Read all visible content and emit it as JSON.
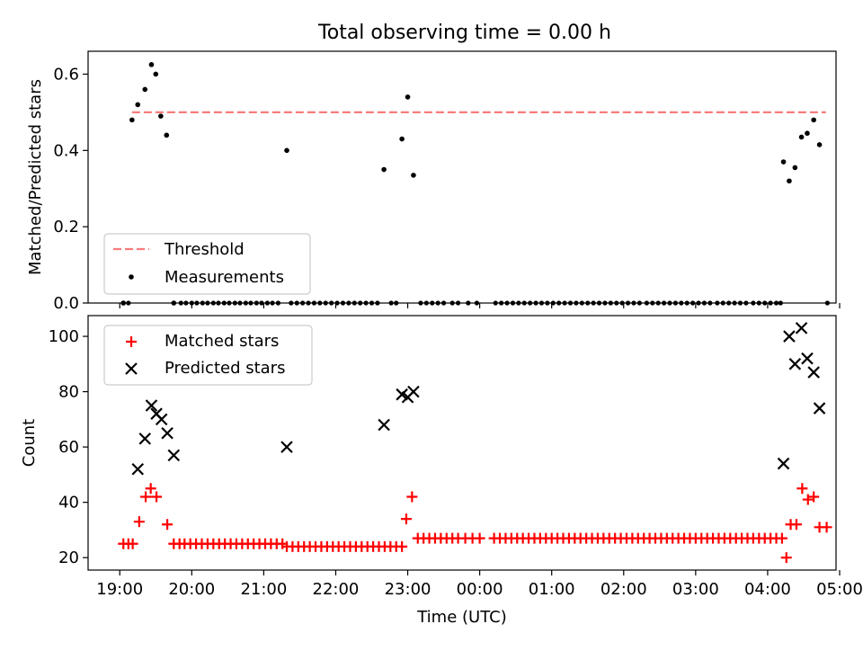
{
  "figure": {
    "title": "Total observing time = 0.00 h"
  },
  "chart_data": [
    {
      "panel": "top",
      "type": "scatter",
      "ylabel": "Matched/Predicted stars",
      "ylim": [
        0,
        0.66
      ],
      "yticks": [
        0.0,
        0.2,
        0.4,
        0.6
      ],
      "ytick_labels": [
        "0.0",
        "0.2",
        "0.4",
        "0.6"
      ],
      "xlim": [
        -0.44,
        9.95
      ],
      "legend_loc": "lower-left",
      "grid": false,
      "series": [
        {
          "name": "Threshold",
          "kind": "line",
          "style": "dashed",
          "color": "#f87c7c",
          "x": [
            0.17,
            9.81
          ],
          "y": [
            0.5,
            0.5
          ]
        },
        {
          "name": "Measurements",
          "kind": "points",
          "color": "#000000",
          "x": [
            0.05,
            0.17,
            0.25,
            0.35,
            0.44,
            0.5,
            0.57,
            0.65,
            0.75,
            2.32,
            3.67,
            3.92,
            4.0,
            4.08,
            9.22,
            9.3,
            9.38,
            9.47,
            9.55,
            9.64,
            9.72
          ],
          "y": [
            0.0,
            0.48,
            0.52,
            0.56,
            0.625,
            0.6,
            0.49,
            0.44,
            0.0,
            0.4,
            0.35,
            0.43,
            0.54,
            0.335,
            0.37,
            0.32,
            0.355,
            0.435,
            0.445,
            0.48,
            0.415
          ]
        },
        {
          "name": "",
          "kind": "zero-points",
          "color": "#000000",
          "x": [
            0.05,
            0.12,
            0.85,
            0.92,
            1.0,
            1.07,
            1.15,
            1.22,
            1.3,
            1.37,
            1.45,
            1.52,
            1.6,
            1.67,
            1.75,
            1.82,
            1.9,
            1.97,
            2.05,
            2.12,
            2.2,
            2.38,
            2.46,
            2.54,
            2.62,
            2.7,
            2.78,
            2.86,
            2.94,
            3.02,
            3.1,
            3.18,
            3.26,
            3.34,
            3.42,
            3.5,
            3.58,
            3.77,
            3.84,
            4.18,
            4.26,
            4.34,
            4.42,
            4.5,
            4.62,
            4.7,
            4.84,
            4.96,
            5.22,
            5.3,
            5.38,
            5.46,
            5.54,
            5.62,
            5.7,
            5.78,
            5.86,
            5.94,
            6.02,
            6.1,
            6.18,
            6.26,
            6.34,
            6.42,
            6.5,
            6.58,
            6.66,
            6.74,
            6.82,
            6.9,
            6.98,
            7.06,
            7.14,
            7.22,
            7.32,
            7.4,
            7.48,
            7.56,
            7.64,
            7.72,
            7.8,
            7.88,
            7.96,
            8.04,
            8.12,
            8.2,
            8.3,
            8.38,
            8.46,
            8.54,
            8.62,
            8.7,
            8.8,
            8.88,
            8.96,
            9.04,
            9.12,
            9.18,
            9.83
          ],
          "y": 0.0
        }
      ]
    },
    {
      "panel": "bottom",
      "type": "scatter",
      "xlabel": "Time (UTC)",
      "ylabel": "Count",
      "ylim": [
        15.5,
        107.5
      ],
      "yticks": [
        20,
        40,
        60,
        80,
        100
      ],
      "ytick_labels": [
        "20",
        "40",
        "60",
        "80",
        "100"
      ],
      "xlim": [
        -0.44,
        9.95
      ],
      "xticks": [
        0,
        1,
        2,
        3,
        4,
        5,
        6,
        7,
        8,
        9,
        10
      ],
      "xtick_labels": [
        "19:00",
        "20:00",
        "21:00",
        "22:00",
        "23:00",
        "00:00",
        "01:00",
        "02:00",
        "03:00",
        "04:00",
        "05:00"
      ],
      "legend_loc": "upper-left",
      "grid": false,
      "series": [
        {
          "name": "Matched stars",
          "marker": "+",
          "color": "#ff0000",
          "x": [
            0.05,
            0.12,
            0.18,
            0.27,
            0.36,
            0.43,
            0.51,
            0.66,
            0.75,
            0.83,
            0.9,
            0.98,
            1.06,
            1.14,
            1.22,
            1.3,
            1.38,
            1.46,
            1.54,
            1.62,
            1.7,
            1.78,
            1.86,
            1.94,
            2.02,
            2.1,
            2.18,
            2.26,
            2.32,
            2.4,
            2.48,
            2.56,
            2.64,
            2.72,
            2.8,
            2.88,
            2.96,
            3.04,
            3.12,
            3.2,
            3.28,
            3.36,
            3.44,
            3.52,
            3.6,
            3.68,
            3.76,
            3.84,
            3.92,
            3.98,
            4.06,
            4.14,
            4.22,
            4.3,
            4.38,
            4.46,
            4.54,
            4.62,
            4.7,
            4.8,
            4.9,
            5.0,
            5.2,
            5.28,
            5.36,
            5.44,
            5.52,
            5.6,
            5.68,
            5.76,
            5.84,
            5.92,
            6.0,
            6.08,
            6.16,
            6.24,
            6.32,
            6.4,
            6.48,
            6.56,
            6.64,
            6.72,
            6.8,
            6.88,
            6.96,
            7.04,
            7.12,
            7.2,
            7.28,
            7.36,
            7.44,
            7.52,
            7.6,
            7.68,
            7.76,
            7.84,
            7.92,
            8.0,
            8.08,
            8.16,
            8.24,
            8.32,
            8.4,
            8.48,
            8.56,
            8.64,
            8.72,
            8.8,
            8.88,
            8.96,
            9.04,
            9.12,
            9.2,
            9.26,
            9.32,
            9.4,
            9.48,
            9.56,
            9.64,
            9.72,
            9.82
          ],
          "y": [
            25,
            25,
            25,
            33,
            42,
            45,
            42,
            32,
            25,
            25,
            25,
            25,
            25,
            25,
            25,
            25,
            25,
            25,
            25,
            25,
            25,
            25,
            25,
            25,
            25,
            25,
            25,
            25,
            24,
            24,
            24,
            24,
            24,
            24,
            24,
            24,
            24,
            24,
            24,
            24,
            24,
            24,
            24,
            24,
            24,
            24,
            24,
            24,
            24,
            34,
            42,
            27,
            27,
            27,
            27,
            27,
            27,
            27,
            27,
            27,
            27,
            27,
            27,
            27,
            27,
            27,
            27,
            27,
            27,
            27,
            27,
            27,
            27,
            27,
            27,
            27,
            27,
            27,
            27,
            27,
            27,
            27,
            27,
            27,
            27,
            27,
            27,
            27,
            27,
            27,
            27,
            27,
            27,
            27,
            27,
            27,
            27,
            27,
            27,
            27,
            27,
            27,
            27,
            27,
            27,
            27,
            27,
            27,
            27,
            27,
            27,
            27,
            27,
            20,
            32,
            32,
            45,
            41,
            42,
            31,
            31
          ]
        },
        {
          "name": "Predicted stars",
          "marker": "x",
          "color": "#000000",
          "x": [
            0.25,
            0.35,
            0.44,
            0.51,
            0.58,
            0.66,
            0.75,
            2.32,
            3.67,
            3.92,
            4.0,
            4.08,
            9.22,
            9.3,
            9.38,
            9.47,
            9.55,
            9.64,
            9.72
          ],
          "y": [
            52,
            63,
            75,
            72,
            70,
            65,
            57,
            60,
            68,
            79,
            78,
            80,
            54,
            100,
            90,
            103,
            92,
            87,
            74
          ]
        }
      ]
    }
  ]
}
